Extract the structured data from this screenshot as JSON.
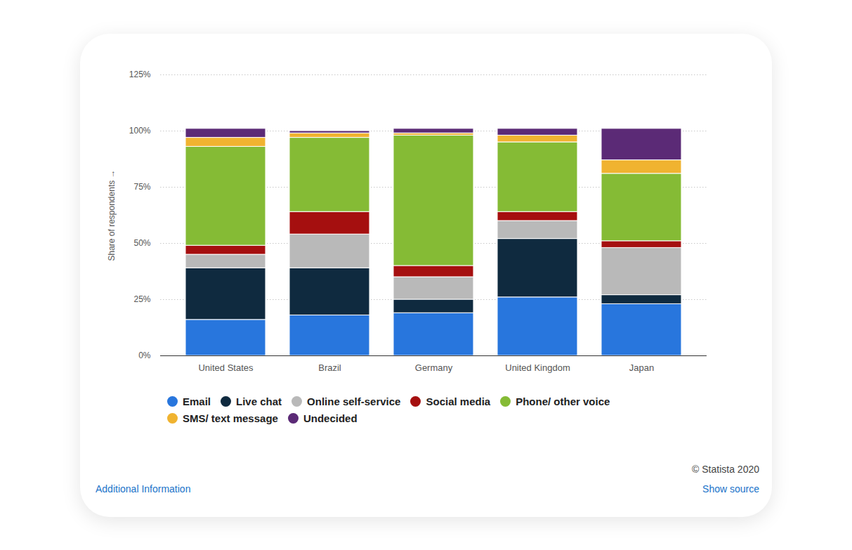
{
  "chart_data": {
    "type": "bar",
    "stacked": true,
    "grid": true,
    "legend": "bottom",
    "ylabel": "Share of respondents",
    "categories": [
      "United States",
      "Brazil",
      "Germany",
      "United Kingdom",
      "Japan"
    ],
    "ylim": [
      0,
      125
    ],
    "yticks": [
      {
        "value": 0,
        "label": "0%"
      },
      {
        "value": 25,
        "label": "25%"
      },
      {
        "value": 50,
        "label": "50%"
      },
      {
        "value": 75,
        "label": "75%"
      },
      {
        "value": 100,
        "label": "100%"
      },
      {
        "value": 125,
        "label": "125%"
      }
    ],
    "series": [
      {
        "name": "Email",
        "color": "#2876dd",
        "values": [
          16,
          18,
          19,
          26,
          23
        ]
      },
      {
        "name": "Live chat",
        "color": "#0f2a3f",
        "values": [
          23,
          21,
          6,
          26,
          4
        ]
      },
      {
        "name": "Online self-service",
        "color": "#b9b9b9",
        "values": [
          6,
          15,
          10,
          8,
          21
        ]
      },
      {
        "name": "Social media",
        "color": "#a50f0f",
        "values": [
          4,
          10,
          5,
          4,
          3
        ]
      },
      {
        "name": "Phone/ other voice",
        "color": "#85bb35",
        "values": [
          44,
          33,
          58,
          31,
          30
        ]
      },
      {
        "name": "SMS/ text message",
        "color": "#f0b330",
        "values": [
          4,
          2,
          1,
          3,
          6
        ]
      },
      {
        "name": "Undecided",
        "color": "#5b2a76",
        "values": [
          4,
          1,
          2,
          3,
          14
        ]
      }
    ],
    "annotations": [
      "© Statista 2020",
      "Additional Information",
      "Show source"
    ]
  }
}
